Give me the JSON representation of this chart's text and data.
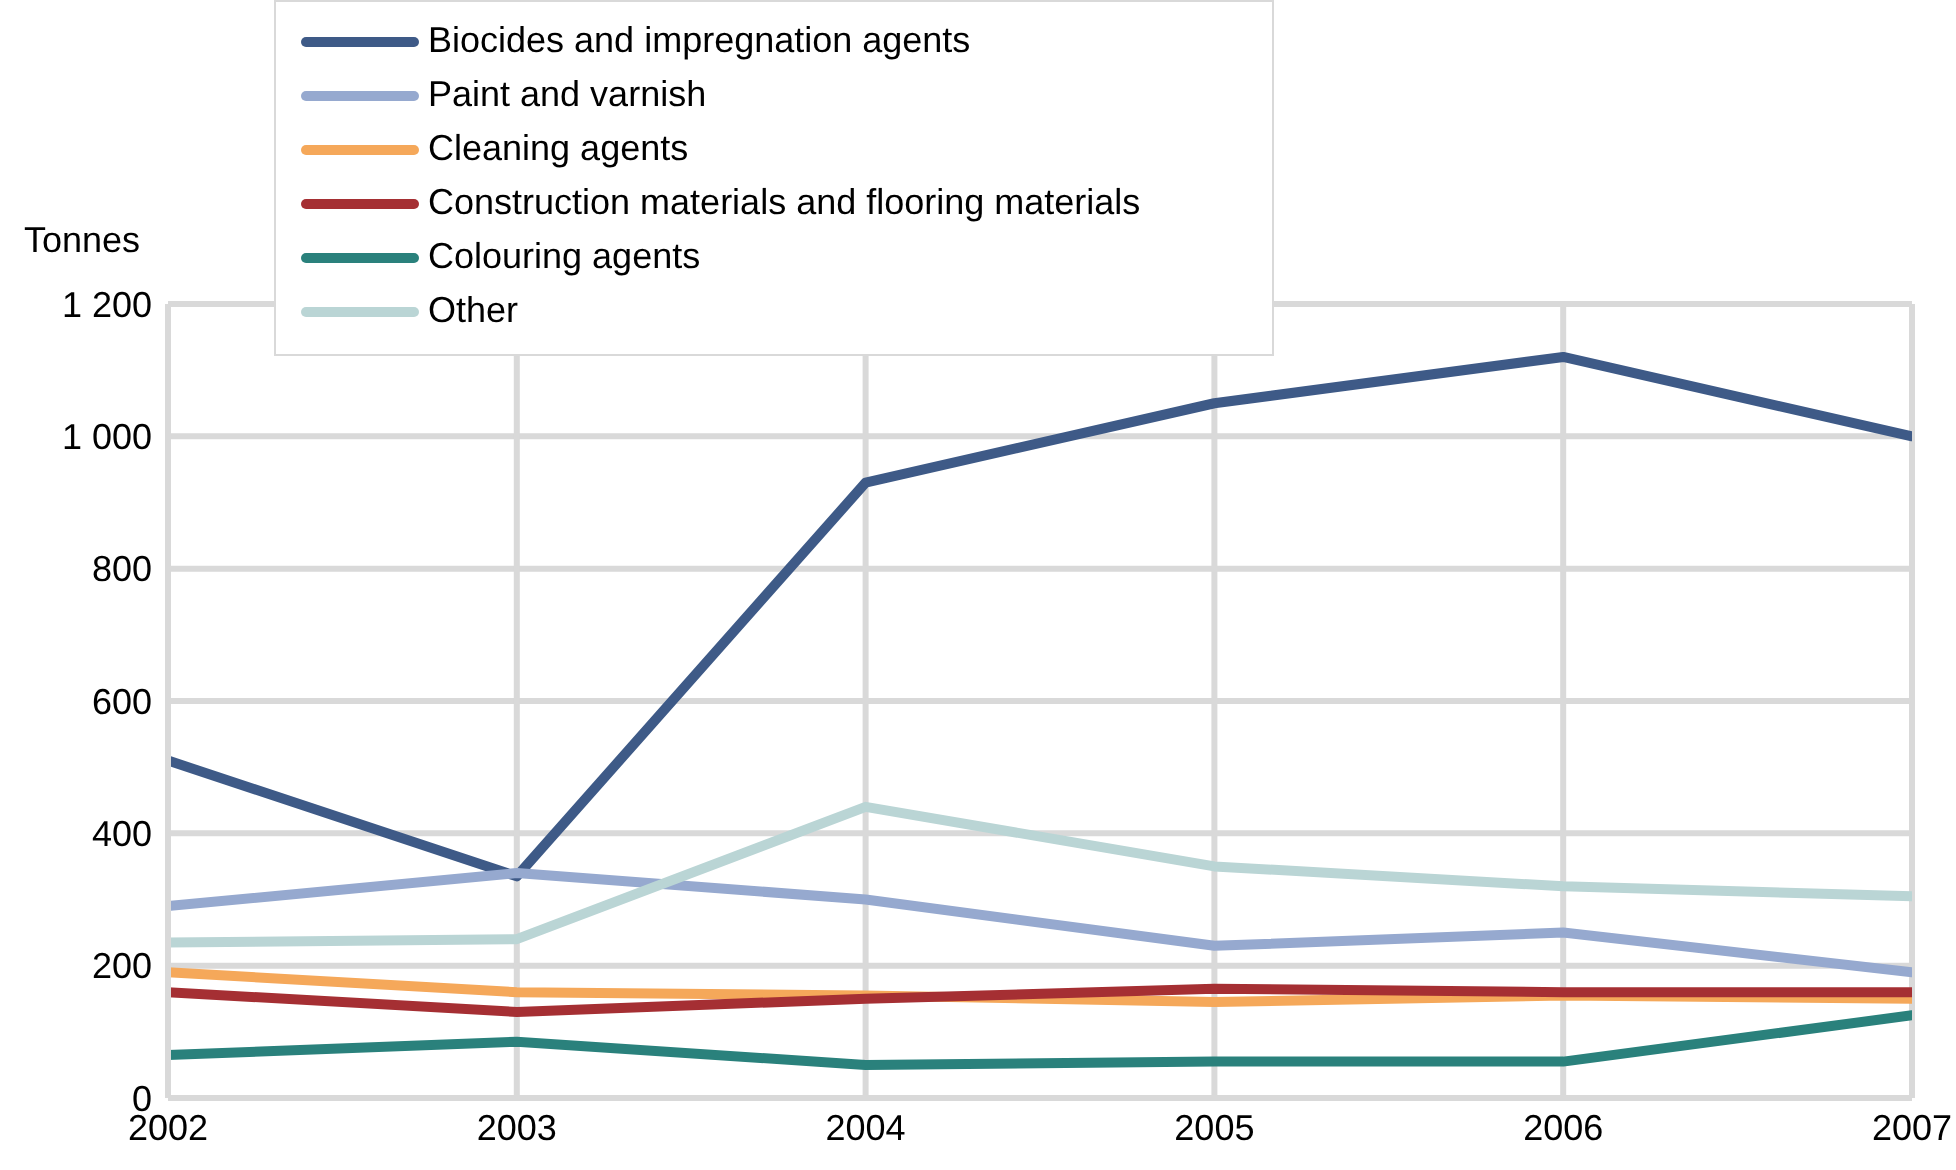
{
  "chart_data": {
    "type": "line",
    "ylabel": "Tonnes",
    "x": [
      2002,
      2003,
      2004,
      2005,
      2006,
      2007
    ],
    "xlim": [
      2002,
      2007
    ],
    "xticks": [
      2002,
      2003,
      2004,
      2005,
      2006,
      2007
    ],
    "ylim": [
      0,
      1200
    ],
    "yticks": [
      0,
      200,
      400,
      600,
      800,
      {
        "value": 1000,
        "label": "1 000"
      },
      {
        "value": 1200,
        "label": "1 200"
      }
    ],
    "grid": true,
    "legend": "top",
    "marker": "none",
    "line_style": "solid",
    "series": [
      {
        "name": "Biocides and impregnation agents",
        "color": "#3e5a87",
        "values": [
          510,
          335,
          930,
          1050,
          1120,
          1000
        ]
      },
      {
        "name": "Paint and varnish",
        "color": "#96a9cf",
        "values": [
          290,
          340,
          300,
          230,
          250,
          190
        ]
      },
      {
        "name": "Cleaning agents",
        "color": "#f5a85a",
        "values": [
          190,
          160,
          155,
          145,
          155,
          150
        ]
      },
      {
        "name": "Construction materials and flooring materials",
        "color": "#a52f33",
        "values": [
          160,
          130,
          150,
          165,
          160,
          160
        ]
      },
      {
        "name": "Colouring agents",
        "color": "#2a817c",
        "values": [
          65,
          85,
          50,
          55,
          55,
          125
        ]
      },
      {
        "name": "Other",
        "color": "#bad5d5",
        "values": [
          235,
          240,
          440,
          350,
          320,
          305
        ]
      }
    ]
  }
}
